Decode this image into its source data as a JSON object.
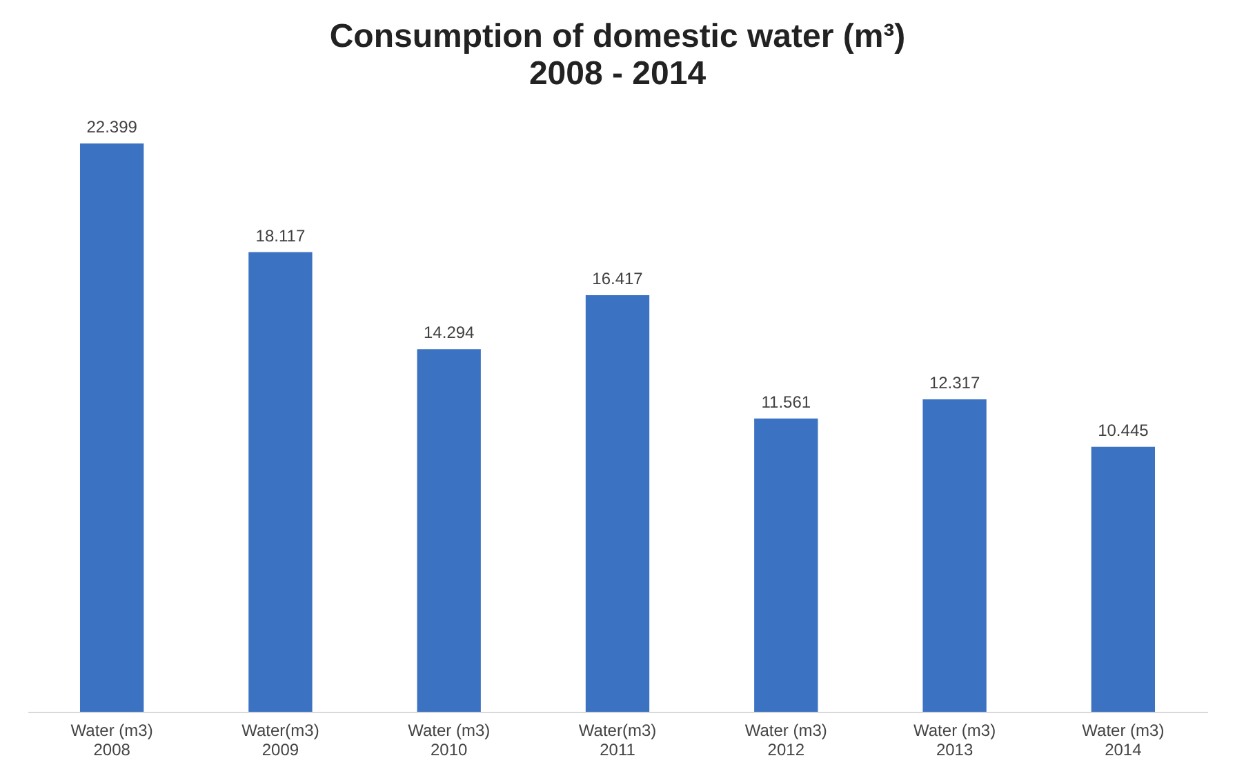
{
  "chart_data": {
    "type": "bar",
    "title": "Consumption of domestic water (m³)",
    "subtitle": "2008 - 2014",
    "categories": [
      "Water (m3) 2008",
      "Water(m3) 2009",
      "Water (m3) 2010",
      "Water(m3) 2011",
      "Water (m3) 2012",
      "Water (m3) 2013",
      "Water (m3) 2014"
    ],
    "values": [
      22.399,
      18.117,
      14.294,
      16.417,
      11.561,
      12.317,
      10.445
    ],
    "color": "#3c72c2",
    "data_labels": true
  }
}
